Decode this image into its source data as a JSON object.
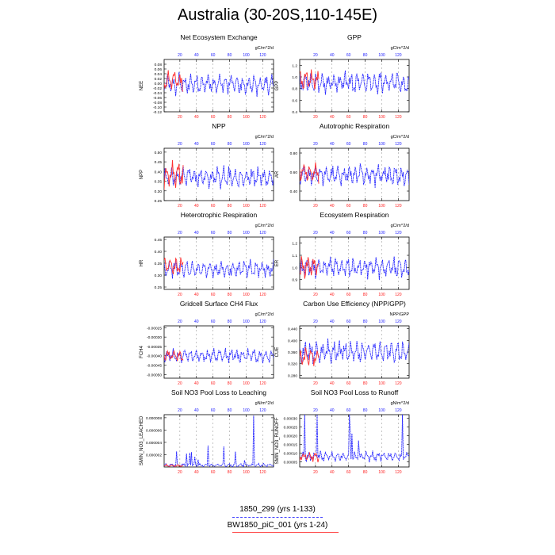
{
  "page": {
    "title": "Australia (30-20S,110-145E)"
  },
  "legend": {
    "entries": [
      {
        "label": "1850_299 (yrs 1-133)",
        "color": "#4040ff",
        "style": "dashed"
      },
      {
        "label": "BW1850_piC_001 (yrs 1-24)",
        "color": "#ff5050",
        "style": "solid"
      }
    ]
  },
  "colors": {
    "series_blue": "#1a1aff",
    "series_red": "#ff3030",
    "top_axis": "#2020ff",
    "bottom_axis": "#ff2020",
    "grid": "#888888"
  },
  "chart_data": [
    {
      "type": "line",
      "title": "Net Ecosystem Exchange",
      "units": "gC/m^2/d",
      "ylabel": "NEE",
      "ylim": [
        -0.12,
        0.1
      ],
      "yticks": [
        "0.08",
        "0.06",
        "0.04",
        "0.02",
        "0.00",
        "-0.02",
        "-0.04",
        "-0.06",
        "-0.08",
        "-0.10",
        "-0.12"
      ],
      "yticks_values": [
        0.08,
        0.06,
        0.04,
        0.02,
        0.0,
        -0.02,
        -0.04,
        -0.06,
        -0.08,
        -0.1,
        -0.12
      ],
      "top_xticks": [
        "20",
        "40",
        "60",
        "80",
        "100",
        "120"
      ],
      "bottom_xticks": [
        "20",
        "40",
        "60",
        "80",
        "100",
        "120"
      ],
      "series": [
        {
          "center": -0.005,
          "amp": 0.045,
          "seed": 1
        },
        {
          "center": 0.01,
          "amp": 0.05,
          "seed": 2
        }
      ]
    },
    {
      "type": "line",
      "title": "GPP",
      "units": "gC/m^2/d",
      "ylabel": "GPP",
      "ylim": [
        0.4,
        1.3
      ],
      "yticks": [
        "1.2",
        "1.0",
        "0.8",
        "0.6",
        "0.4"
      ],
      "yticks_values": [
        1.2,
        1.0,
        0.8,
        0.6,
        0.4
      ],
      "top_xticks": [
        "20",
        "40",
        "60",
        "80",
        "100",
        "120"
      ],
      "bottom_xticks": [
        "20",
        "40",
        "60",
        "80",
        "100",
        "120"
      ],
      "series": [
        {
          "center": 0.9,
          "amp": 0.2,
          "seed": 3
        },
        {
          "center": 0.95,
          "amp": 0.2,
          "seed": 4
        }
      ]
    },
    {
      "type": "line",
      "title": "NPP",
      "units": "gC/m^2/d",
      "ylabel": "NPP",
      "ylim": [
        0.25,
        0.52
      ],
      "yticks": [
        "0.50",
        "0.45",
        "0.40",
        "0.35",
        "0.30",
        "0.25"
      ],
      "yticks_values": [
        0.5,
        0.45,
        0.4,
        0.35,
        0.3,
        0.25
      ],
      "top_xticks": [
        "20",
        "40",
        "60",
        "80",
        "100",
        "120"
      ],
      "bottom_xticks": [
        "20",
        "40",
        "60",
        "80",
        "100",
        "120"
      ],
      "series": [
        {
          "center": 0.37,
          "amp": 0.06,
          "seed": 5
        },
        {
          "center": 0.38,
          "amp": 0.07,
          "seed": 6
        }
      ]
    },
    {
      "type": "line",
      "title": "Autotrophic Respiration",
      "units": "gC/m^2/d",
      "ylabel": "AR",
      "ylim": [
        0.3,
        0.85
      ],
      "yticks": [
        "0.80",
        "0.60",
        "0.40"
      ],
      "yticks_values": [
        0.8,
        0.6,
        0.4
      ],
      "top_xticks": [
        "20",
        "40",
        "60",
        "80",
        "100",
        "120"
      ],
      "bottom_xticks": [
        "20",
        "40",
        "60",
        "80",
        "100",
        "120"
      ],
      "series": [
        {
          "center": 0.57,
          "amp": 0.12,
          "seed": 7
        },
        {
          "center": 0.6,
          "amp": 0.12,
          "seed": 8
        }
      ]
    },
    {
      "type": "line",
      "title": "Heterotrophic Respiration",
      "units": "gC/m^2/d",
      "ylabel": "HR",
      "ylim": [
        0.24,
        0.46
      ],
      "yticks": [
        "0.45",
        "0.40",
        "0.35",
        "0.30",
        "0.25"
      ],
      "yticks_values": [
        0.45,
        0.4,
        0.35,
        0.3,
        0.25
      ],
      "top_xticks": [
        "20",
        "40",
        "60",
        "80",
        "100",
        "120"
      ],
      "bottom_xticks": [
        "20",
        "40",
        "60",
        "80",
        "100",
        "120"
      ],
      "series": [
        {
          "center": 0.325,
          "amp": 0.04,
          "seed": 9
        },
        {
          "center": 0.34,
          "amp": 0.05,
          "seed": 10
        }
      ]
    },
    {
      "type": "line",
      "title": "Ecosystem Respiration",
      "units": "gC/m^2/d",
      "ylabel": "ER",
      "ylim": [
        0.82,
        1.25
      ],
      "yticks": [
        "1.2",
        "1.1",
        "1.0",
        "0.9"
      ],
      "yticks_values": [
        1.2,
        1.1,
        1.0,
        0.9
      ],
      "top_xticks": [
        "20",
        "40",
        "60",
        "80",
        "100",
        "120"
      ],
      "bottom_xticks": [
        "20",
        "40",
        "60",
        "80",
        "100",
        "120"
      ],
      "series": [
        {
          "center": 1.0,
          "amp": 0.09,
          "seed": 11
        },
        {
          "center": 1.0,
          "amp": 0.1,
          "seed": 12
        }
      ]
    },
    {
      "type": "line",
      "title": "Gridcell Surface CH4 Flux",
      "units": "gC/m^2/d",
      "ylabel": "FCH4",
      "ylim": [
        -0.00052,
        -0.00024
      ],
      "yticks": [
        "-0.00025",
        "-0.00030",
        "-0.00035",
        "-0.00040",
        "-0.00045",
        "-0.00050"
      ],
      "yticks_values": [
        -0.00025,
        -0.0003,
        -0.00035,
        -0.0004,
        -0.00045,
        -0.0005
      ],
      "top_xticks": [
        "20",
        "40",
        "60",
        "80",
        "100",
        "120"
      ],
      "bottom_xticks": [
        "20",
        "40",
        "60",
        "80",
        "100",
        "120"
      ],
      "series": [
        {
          "center": -0.0004,
          "amp": 4e-05,
          "seed": 13
        },
        {
          "center": -0.0004,
          "amp": 4e-05,
          "seed": 14
        }
      ]
    },
    {
      "type": "line",
      "title": "Carbon Use Efficiency (NPP/GPP)",
      "units": "NPP/GPP",
      "ylabel": "CUE",
      "ylim": [
        0.27,
        0.45
      ],
      "yticks": [
        "0.440",
        "0.400",
        "0.360",
        "0.320",
        "0.280"
      ],
      "yticks_values": [
        0.44,
        0.4,
        0.36,
        0.32,
        0.28
      ],
      "top_xticks": [
        "20",
        "40",
        "60",
        "80",
        "100",
        "120"
      ],
      "bottom_xticks": [
        "20",
        "40",
        "60",
        "80",
        "100",
        "120"
      ],
      "series": [
        {
          "center": 0.36,
          "amp": 0.04,
          "seed": 15
        },
        {
          "center": 0.34,
          "amp": 0.04,
          "seed": 16
        }
      ]
    },
    {
      "type": "line",
      "title": "Soil NO3 Pool Loss to Leaching",
      "units": "gN/m^2/d",
      "ylabel": "SMIN_NO3_LEACHED",
      "ylim": [
        0,
        8.5e-06
      ],
      "yticks": [
        "0.000008",
        "0.000006",
        "0.000004",
        "0.000002"
      ],
      "yticks_values": [
        8e-06,
        6e-06,
        4e-06,
        2e-06
      ],
      "top_xticks": [
        "20",
        "40",
        "60",
        "80",
        "100",
        "120"
      ],
      "bottom_xticks": [
        "20",
        "40",
        "60",
        "80",
        "100",
        "120"
      ],
      "series": [
        {
          "center": 3e-07,
          "amp": 3e-07,
          "seed": 17,
          "spiky": true
        },
        {
          "center": 2e-07,
          "amp": 2e-07,
          "seed": 18
        }
      ]
    },
    {
      "type": "line",
      "title": "Soil NO3 Pool Loss to Runoff",
      "units": "gN/m^2/d",
      "ylabel": "SMIN_NO3_RUNOFF",
      "ylim": [
        2e-05,
        0.00032
      ],
      "yticks": [
        "0.00030",
        "0.00025",
        "0.00020",
        "0.00015",
        "0.00010",
        "0.00005"
      ],
      "yticks_values": [
        0.0003,
        0.00025,
        0.0002,
        0.00015,
        0.0001,
        5e-05
      ],
      "top_xticks": [
        "20",
        "40",
        "60",
        "80",
        "100",
        "120"
      ],
      "bottom_xticks": [
        "20",
        "40",
        "60",
        "80",
        "100",
        "120"
      ],
      "series": [
        {
          "center": 8e-05,
          "amp": 3e-05,
          "seed": 19,
          "spiky": true
        },
        {
          "center": 8e-05,
          "amp": 3e-05,
          "seed": 20
        }
      ]
    }
  ]
}
